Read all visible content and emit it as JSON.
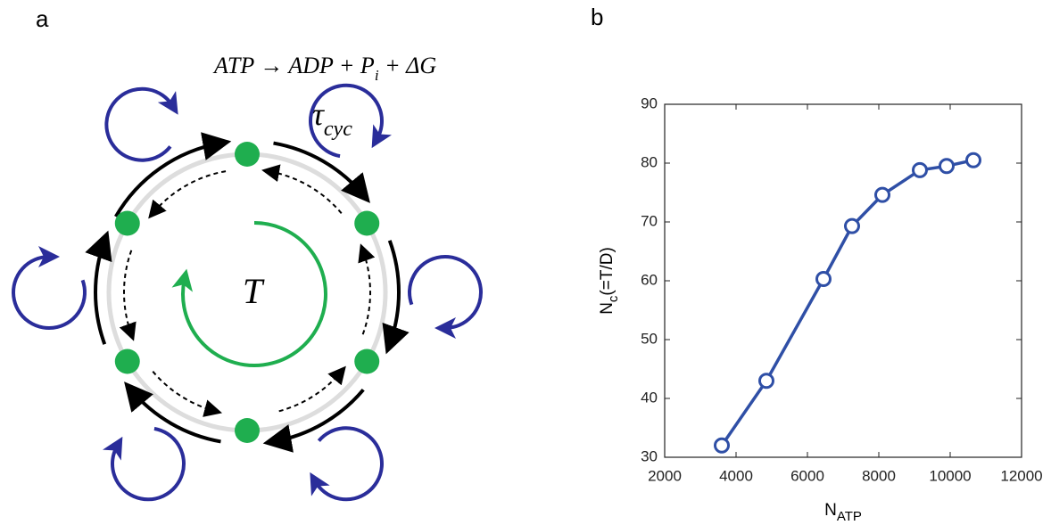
{
  "panel_a": {
    "label": "a",
    "equation": [
      "ATP → ADP + P",
      "i",
      " + ΔG"
    ],
    "tau": [
      "τ",
      "cyc"
    ],
    "turn": "T"
  },
  "chart_data": {
    "type": "line",
    "label": "b",
    "xlabel": [
      "N",
      "ATP"
    ],
    "ylabel": [
      "N",
      "c",
      "(=T/D)"
    ],
    "x": [
      3600,
      4850,
      6450,
      7250,
      8100,
      9150,
      9900,
      10650
    ],
    "values": [
      32,
      43,
      60.3,
      69.3,
      74.6,
      78.8,
      79.5,
      80.5
    ],
    "color": "#2f4fa6",
    "xlim": [
      2000,
      12000
    ],
    "xticks": [
      2000,
      4000,
      6000,
      8000,
      10000,
      12000
    ],
    "ylim": [
      30,
      90
    ],
    "yticks": [
      30,
      40,
      50,
      60,
      70,
      80,
      90
    ]
  }
}
